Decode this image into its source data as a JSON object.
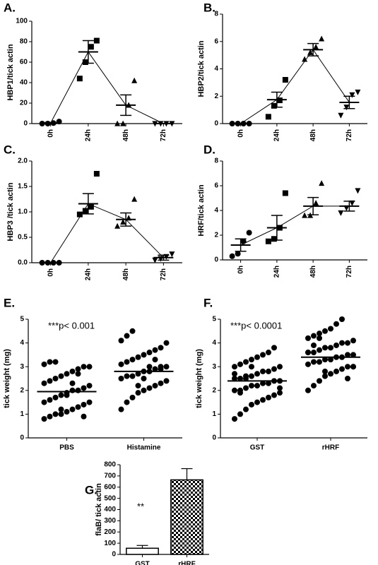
{
  "chart_data": [
    {
      "type": "dotplot",
      "label": "A.",
      "ylabel": "HBP1/tick actin",
      "categories": [
        "0h",
        "24h",
        "48h",
        "72h"
      ],
      "markers": [
        "circle",
        "square",
        "triangle",
        "triangle-down"
      ],
      "points": [
        [
          0,
          0,
          0.5,
          2
        ],
        [
          44,
          60,
          75,
          81
        ],
        [
          0,
          0,
          18,
          42
        ],
        [
          0,
          0,
          0,
          0
        ]
      ],
      "means": [
        0.5,
        70,
        18,
        0
      ],
      "errors": [
        0.6,
        11,
        10,
        0
      ],
      "connect": true,
      "rotate_xticks": true,
      "ylim": [
        0,
        100
      ],
      "yticks": [
        0,
        20,
        40,
        60,
        80,
        100
      ]
    },
    {
      "type": "dotplot",
      "label": "B.",
      "ylabel": "HBP2/tick actin",
      "categories": [
        "0h",
        "24h",
        "48h",
        "72h"
      ],
      "markers": [
        "circle",
        "square",
        "triangle",
        "triangle-down"
      ],
      "points": [
        [
          0,
          0,
          0,
          0
        ],
        [
          0.5,
          1.3,
          1.7,
          3.2
        ],
        [
          4.7,
          5.2,
          5.6,
          6.2
        ],
        [
          0.6,
          1.2,
          2.1,
          2.3
        ]
      ],
      "means": [
        0,
        1.75,
        5.4,
        1.55
      ],
      "errors": [
        0,
        0.55,
        0.45,
        0.45
      ],
      "connect": true,
      "rotate_xticks": true,
      "ylim": [
        0,
        8
      ],
      "yticks": [
        0,
        2,
        4,
        6,
        8
      ]
    },
    {
      "type": "dotplot",
      "label": "C.",
      "ylabel": "HBP3 /tick actin",
      "categories": [
        "0h",
        "24h",
        "48h",
        "72h"
      ],
      "markers": [
        "circle",
        "square",
        "triangle",
        "triangle-down"
      ],
      "points": [
        [
          0,
          0,
          0,
          0
        ],
        [
          0.95,
          1.02,
          1.1,
          1.75
        ],
        [
          0.72,
          0.8,
          0.88,
          1.25
        ],
        [
          0.05,
          0.08,
          0.12,
          0.17
        ]
      ],
      "means": [
        0,
        1.16,
        0.85,
        0.1
      ],
      "errors": [
        0,
        0.2,
        0.13,
        0.05
      ],
      "connect": true,
      "rotate_xticks": true,
      "ylim": [
        0,
        2
      ],
      "yticks": [
        {
          "value": 0,
          "label": "0.0"
        },
        0.5,
        {
          "value": 1,
          "label": "1.0"
        },
        1.5,
        {
          "value": 2,
          "label": "2.0"
        }
      ]
    },
    {
      "type": "dotplot",
      "label": "D.",
      "ylabel": "HRF/tick actin",
      "categories": [
        "0h",
        "24h",
        "48h",
        "72h"
      ],
      "markers": [
        "circle",
        "square",
        "triangle",
        "triangle-down"
      ],
      "points": [
        [
          0.3,
          0.5,
          1.5,
          2.2
        ],
        [
          1.5,
          1.7,
          2.6,
          5.4
        ],
        [
          3.6,
          3.6,
          4.6,
          6.2
        ],
        [
          3.8,
          4.2,
          4.6,
          5.6
        ]
      ],
      "means": [
        1.2,
        2.6,
        4.35,
        4.35
      ],
      "errors": [
        0.5,
        1.0,
        0.7,
        0.4
      ],
      "connect": true,
      "rotate_xticks": true,
      "ylim": [
        0,
        8
      ],
      "yticks": [
        0,
        2,
        4,
        6,
        8
      ]
    },
    {
      "type": "dotplot",
      "label": "E.",
      "ylabel": "tick weight (mg)",
      "annotation": "***p< 0.001",
      "categories": [
        "PBS",
        "Histamine"
      ],
      "markers": [
        "circle",
        "circle"
      ],
      "points": [
        [
          0.8,
          0.9,
          1.0,
          1.0,
          1.1,
          1.2,
          1.3,
          1.4,
          1.5,
          1.5,
          1.6,
          1.7,
          1.8,
          1.9,
          2.0,
          2.0,
          2.1,
          2.2,
          2.3,
          2.4,
          2.5,
          2.6,
          2.7,
          2.8,
          2.9,
          3.0,
          3.0,
          3.1,
          3.2,
          3.2,
          1.2,
          1.8,
          2.3,
          2.7,
          0.9
        ],
        [
          1.2,
          1.5,
          1.7,
          1.9,
          2.0,
          2.1,
          2.2,
          2.3,
          2.4,
          2.5,
          2.6,
          2.6,
          2.7,
          2.8,
          2.8,
          2.9,
          3.0,
          3.0,
          3.1,
          3.2,
          3.3,
          3.4,
          3.5,
          3.6,
          3.7,
          3.8,
          4.0,
          4.1,
          4.3,
          4.5,
          2.2,
          2.5,
          3.0,
          3.3,
          2.9
        ]
      ],
      "means": [
        1.95,
        2.8
      ],
      "connect": false,
      "rotate_xticks": false,
      "ylim": [
        0,
        5
      ],
      "yticks": [
        0,
        1,
        2,
        3,
        4,
        5
      ]
    },
    {
      "type": "dotplot",
      "label": "F.",
      "ylabel": "tick weight (mg)",
      "annotation": "***p< 0.0001",
      "categories": [
        "GST",
        "rHRF"
      ],
      "markers": [
        "circle",
        "circle"
      ],
      "points": [
        [
          0.8,
          1.0,
          1.2,
          1.4,
          1.5,
          1.6,
          1.7,
          1.8,
          1.9,
          2.0,
          2.0,
          2.1,
          2.2,
          2.2,
          2.3,
          2.3,
          2.4,
          2.4,
          2.5,
          2.5,
          2.6,
          2.6,
          2.7,
          2.8,
          2.8,
          2.9,
          3.0,
          3.0,
          3.1,
          3.2,
          3.3,
          3.4,
          3.5,
          3.6,
          3.8,
          2.1,
          2.7,
          1.9,
          2.5,
          3.0
        ],
        [
          2.0,
          2.2,
          2.4,
          2.6,
          2.7,
          2.8,
          2.9,
          3.0,
          3.0,
          3.1,
          3.2,
          3.2,
          3.3,
          3.3,
          3.4,
          3.4,
          3.5,
          3.5,
          3.6,
          3.6,
          3.7,
          3.8,
          3.8,
          3.9,
          4.0,
          4.0,
          4.1,
          4.2,
          4.3,
          4.4,
          4.5,
          4.6,
          4.8,
          5.0,
          2.5,
          3.0,
          3.6,
          3.9,
          4.2,
          2.8
        ]
      ],
      "means": [
        2.4,
        3.4
      ],
      "connect": false,
      "rotate_xticks": false,
      "ylim": [
        0,
        5
      ],
      "yticks": [
        0,
        1,
        2,
        3,
        4,
        5
      ]
    },
    {
      "type": "bar",
      "label": "G.",
      "ylabel": "flaB/ tick actin",
      "annotation": "**",
      "categories": [
        "GST",
        "rHRF"
      ],
      "values": [
        55,
        665
      ],
      "errors": [
        25,
        100
      ],
      "fills": [
        "white",
        "checkered"
      ],
      "rotate_xticks": false,
      "ylim": [
        0,
        800
      ],
      "yticks": [
        0,
        100,
        200,
        300,
        400,
        500,
        600,
        700,
        800
      ]
    }
  ]
}
